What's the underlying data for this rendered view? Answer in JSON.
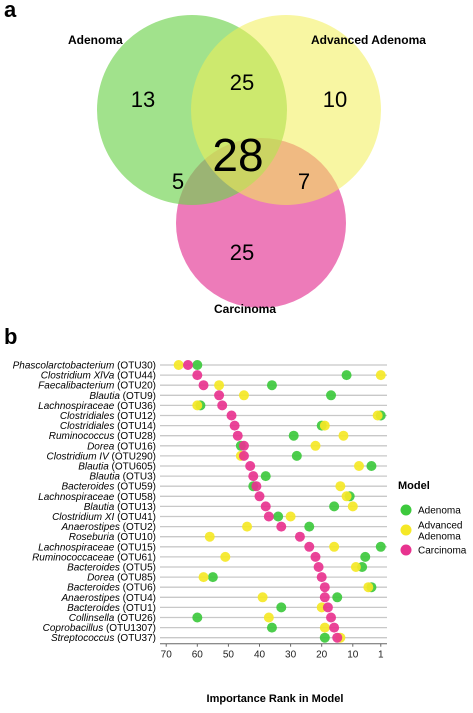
{
  "panels": {
    "a": "a",
    "b": "b"
  },
  "colors": {
    "adenoma": "#3dc93d",
    "advanced_adenoma": "#f5e826",
    "carcinoma": "#e8338f",
    "adenoma_circle": "#6fd24f",
    "advanced_circle": "#f3ee55",
    "carcinoma_circle": "#e85aa8",
    "plot_bg": "#ffffff",
    "row_line": "#c8c8c8",
    "strip": "#d9d9d9"
  },
  "venn": {
    "sets": [
      "Adenoma",
      "Advanced Adenoma",
      "Carcinoma"
    ],
    "regions": {
      "adenoma_only": "13",
      "advanced_only": "10",
      "carcinoma_only": "25",
      "adenoma_advanced": "25",
      "adenoma_carcinoma": "5",
      "advanced_carcinoma": "7",
      "all_three": "28"
    }
  },
  "chart_data": {
    "type": "scatter",
    "title": "",
    "xlabel": "Importance Rank in Model",
    "ylabel": "",
    "xlim": [
      72,
      -1
    ],
    "x_ticks": [
      70,
      60,
      50,
      40,
      30,
      20,
      10,
      1
    ],
    "legend": {
      "title": "Model",
      "position": "right",
      "entries": [
        "Adenoma",
        "Advanced Adenoma",
        "Carcinoma"
      ]
    },
    "categories": [
      {
        "genus": "Phascolarctobacterium",
        "otu": " (OTU30)"
      },
      {
        "genus": "Clostridium XlVa",
        "otu": " (OTU44)"
      },
      {
        "genus": "Faecalibacterium",
        "otu": " (OTU20)"
      },
      {
        "genus": "Blautia",
        "otu": " (OTU9)"
      },
      {
        "genus": "Lachnospiraceae",
        "otu": " (OTU36)"
      },
      {
        "genus": "Clostridiales",
        "otu": " (OTU12)"
      },
      {
        "genus": "Clostridiales",
        "otu": " (OTU14)"
      },
      {
        "genus": "Ruminococcus",
        "otu": " (OTU28)"
      },
      {
        "genus": "Dorea",
        "otu": " (OTU16)"
      },
      {
        "genus": "Clostridium IV",
        "otu": " (OTU290)"
      },
      {
        "genus": "Blautia",
        "otu": " (OTU605)"
      },
      {
        "genus": "Blautia",
        "otu": " (OTU3)"
      },
      {
        "genus": "Bacteroides",
        "otu": " (OTU59)"
      },
      {
        "genus": "Lachnospiraceae",
        "otu": " (OTU58)"
      },
      {
        "genus": "Blautia",
        "otu": " (OTU13)"
      },
      {
        "genus": "Clostridium XI",
        "otu": " (OTU41)"
      },
      {
        "genus": "Anaerostipes",
        "otu": " (OTU2)"
      },
      {
        "genus": "Roseburia",
        "otu": " (OTU10)"
      },
      {
        "genus": "Lachnospiraceae",
        "otu": " (OTU15)"
      },
      {
        "genus": "Ruminococcaceae",
        "otu": " (OTU61)"
      },
      {
        "genus": "Bacteroides",
        "otu": " (OTU5)"
      },
      {
        "genus": "Dorea",
        "otu": " (OTU85)"
      },
      {
        "genus": "Bacteroides",
        "otu": " (OTU6)"
      },
      {
        "genus": "Anaerostipes",
        "otu": " (OTU4)"
      },
      {
        "genus": "Bacteroides",
        "otu": " (OTU1)"
      },
      {
        "genus": "Collinsella",
        "otu": " (OTU26)"
      },
      {
        "genus": "Coprobacillus",
        "otu": " (OTU1307)"
      },
      {
        "genus": "Streptococcus",
        "otu": " (OTU37)"
      }
    ],
    "series": [
      {
        "name": "Carcinoma",
        "color_key": "carcinoma",
        "values": [
          63,
          60,
          58,
          53,
          52,
          49,
          48,
          47,
          45,
          45,
          43,
          42,
          41,
          40,
          38,
          37,
          33,
          27,
          24,
          22,
          21,
          20,
          19,
          19,
          18,
          17,
          16,
          15
        ]
      },
      {
        "name": "Adenoma",
        "color_key": "adenoma",
        "values": [
          60,
          12,
          36,
          17,
          59,
          1,
          20,
          29,
          46,
          28,
          4,
          38,
          42,
          11,
          16,
          34,
          24,
          null,
          1,
          6,
          7,
          55,
          4,
          15,
          33,
          60,
          36,
          19
        ]
      },
      {
        "name": "Advanced Adenoma",
        "color_key": "advanced_adenoma",
        "values": [
          66,
          1,
          53,
          45,
          60,
          2,
          19,
          13,
          22,
          46,
          8,
          null,
          14,
          12,
          10,
          30,
          44,
          56,
          16,
          51,
          9,
          58,
          5,
          39,
          20,
          37,
          19,
          14
        ]
      }
    ]
  }
}
